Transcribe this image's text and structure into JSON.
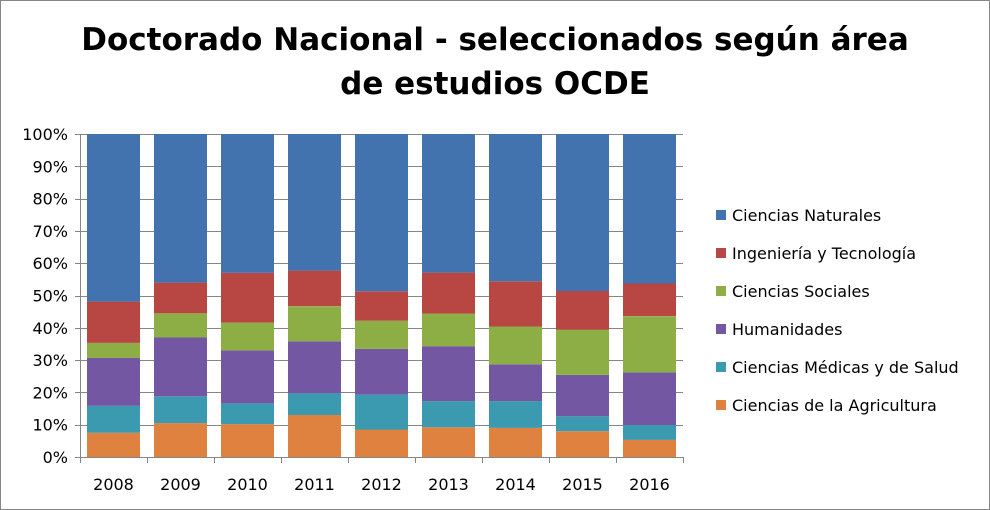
{
  "chart_data": {
    "type": "bar",
    "stacked": true,
    "normalized": true,
    "title_line1": "Doctorado Nacional - seleccionados según área",
    "title_line2": "de estudios OCDE",
    "categories": [
      "2008",
      "2009",
      "2010",
      "2011",
      "2012",
      "2013",
      "2014",
      "2015",
      "2016"
    ],
    "y_ticks": [
      "0%",
      "10%",
      "20%",
      "30%",
      "40%",
      "50%",
      "60%",
      "70%",
      "80%",
      "90%",
      "100%"
    ],
    "ylim": [
      0,
      100
    ],
    "grid": true,
    "legend_position": "right",
    "series": [
      {
        "name": "Ciencias de la Agricultura",
        "color": "#E0823F",
        "values": [
          7.5,
          10.5,
          10.2,
          13.0,
          8.5,
          9.2,
          9.0,
          8.0,
          5.3
        ]
      },
      {
        "name": "Ciencias Médicas y de Salud",
        "color": "#3B9AAF",
        "values": [
          8.3,
          8.3,
          6.4,
          6.7,
          10.8,
          8.1,
          8.3,
          4.6,
          4.6
        ]
      },
      {
        "name": "Humanidades",
        "color": "#7357A2",
        "values": [
          14.9,
          18.2,
          16.4,
          16.1,
          14.2,
          17.0,
          11.4,
          12.8,
          16.3
        ]
      },
      {
        "name": "Ciencias Sociales",
        "color": "#8DAE44",
        "values": [
          4.6,
          7.5,
          8.6,
          10.9,
          8.7,
          10.1,
          11.7,
          14.0,
          17.4
        ]
      },
      {
        "name": "Ingeniería y Tecnología",
        "color": "#B84642",
        "values": [
          12.8,
          9.5,
          15.4,
          11.0,
          9.1,
          12.7,
          14.0,
          12.0,
          10.1
        ]
      },
      {
        "name": "Ciencias Naturales",
        "color": "#4373AE",
        "values": [
          51.9,
          46.0,
          43.0,
          42.3,
          48.7,
          42.9,
          45.6,
          48.6,
          46.3
        ]
      }
    ],
    "legend_order": [
      "Ciencias Naturales",
      "Ingeniería y Tecnología",
      "Ciencias Sociales",
      "Humanidades",
      "Ciencias Médicas y de Salud",
      "Ciencias de la Agricultura"
    ]
  }
}
